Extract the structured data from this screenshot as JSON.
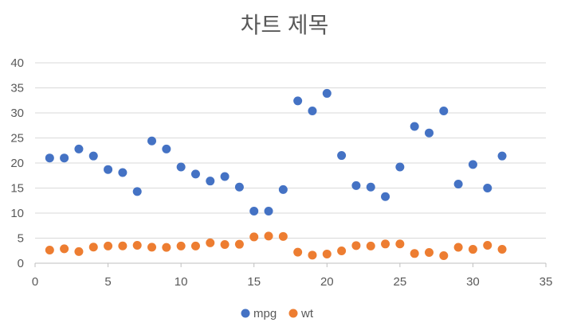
{
  "chart_data": {
    "type": "scatter",
    "title": "차트 제목",
    "xlim": [
      0,
      35
    ],
    "ylim": [
      0,
      40
    ],
    "x_ticks": [
      0,
      5,
      10,
      15,
      20,
      25,
      30,
      35
    ],
    "y_ticks": [
      0,
      5,
      10,
      15,
      20,
      25,
      30,
      35,
      40
    ],
    "grid": "horizontal",
    "legend_position": "bottom",
    "series": [
      {
        "name": "mpg",
        "color": "#4472C4",
        "x": [
          1,
          2,
          3,
          4,
          5,
          6,
          7,
          8,
          9,
          10,
          11,
          12,
          13,
          14,
          15,
          16,
          17,
          18,
          19,
          20,
          21,
          22,
          23,
          24,
          25,
          26,
          27,
          28,
          29,
          30,
          31,
          32
        ],
        "y": [
          21.0,
          21.0,
          22.8,
          21.4,
          18.7,
          18.1,
          14.3,
          24.4,
          22.8,
          19.2,
          17.8,
          16.4,
          17.3,
          15.2,
          10.4,
          10.4,
          14.7,
          32.4,
          30.4,
          33.9,
          21.5,
          15.5,
          15.2,
          13.3,
          19.2,
          27.3,
          26.0,
          30.4,
          15.8,
          19.7,
          15.0,
          21.4
        ]
      },
      {
        "name": "wt",
        "color": "#ED7D31",
        "x": [
          1,
          2,
          3,
          4,
          5,
          6,
          7,
          8,
          9,
          10,
          11,
          12,
          13,
          14,
          15,
          16,
          17,
          18,
          19,
          20,
          21,
          22,
          23,
          24,
          25,
          26,
          27,
          28,
          29,
          30,
          31,
          32
        ],
        "y": [
          2.62,
          2.875,
          2.32,
          3.215,
          3.44,
          3.46,
          3.57,
          3.19,
          3.15,
          3.44,
          3.44,
          4.07,
          3.73,
          3.78,
          5.25,
          5.424,
          5.345,
          2.2,
          1.615,
          1.835,
          2.465,
          3.52,
          3.435,
          3.84,
          3.845,
          1.935,
          2.14,
          1.513,
          3.17,
          2.77,
          3.57,
          2.78
        ]
      }
    ]
  }
}
